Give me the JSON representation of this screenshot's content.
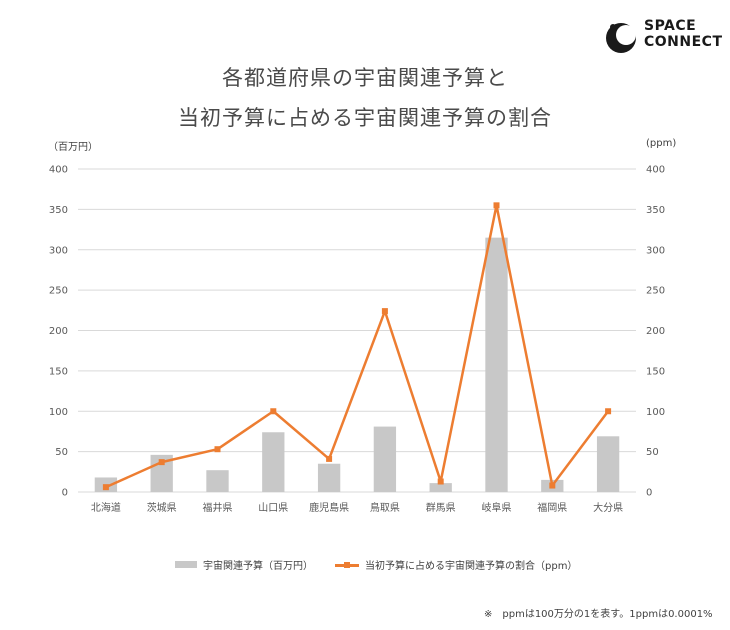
{
  "logo": {
    "line1": "SPACE",
    "line2": "CONNECT"
  },
  "title_line1": "各都道府県の宇宙関連予算と",
  "title_line2": "当初予算に占める宇宙関連予算の割合",
  "left_unit": "（百万円）",
  "right_unit": "(ppm)",
  "footnote": "※　ppmは100万分の1を表す。1ppmは0.0001%",
  "colors": {
    "bar": "#c8c8c8",
    "line": "#ed7d31",
    "grid": "#d9d9d9",
    "axis_text": "#595959"
  },
  "chart_data": {
    "type": "bar",
    "categories": [
      "北海道",
      "茨城県",
      "福井県",
      "山口県",
      "鹿児島県",
      "鳥取県",
      "群馬県",
      "岐阜県",
      "福岡県",
      "大分県"
    ],
    "series": [
      {
        "name": "宇宙関連予算（百万円）",
        "type": "bar",
        "axis": "left",
        "values": [
          18,
          46,
          27,
          74,
          35,
          81,
          11,
          315,
          15,
          69
        ]
      },
      {
        "name": "当初予算に占める宇宙関連予算の割合（ppm）",
        "type": "line",
        "axis": "right",
        "values": [
          6,
          37,
          53,
          100,
          41,
          224,
          13,
          355,
          8,
          100
        ]
      }
    ],
    "ylim_left": [
      0,
      400
    ],
    "ylim_right": [
      0,
      400
    ],
    "yticks_left": [
      "0",
      "50",
      "100",
      "150",
      "200",
      "250",
      "300",
      "350",
      "400"
    ],
    "yticks_right": [
      "0",
      "50",
      "100",
      "150",
      "200",
      "250",
      "300",
      "350",
      "400"
    ],
    "grid": true,
    "legend_position": "bottom"
  }
}
